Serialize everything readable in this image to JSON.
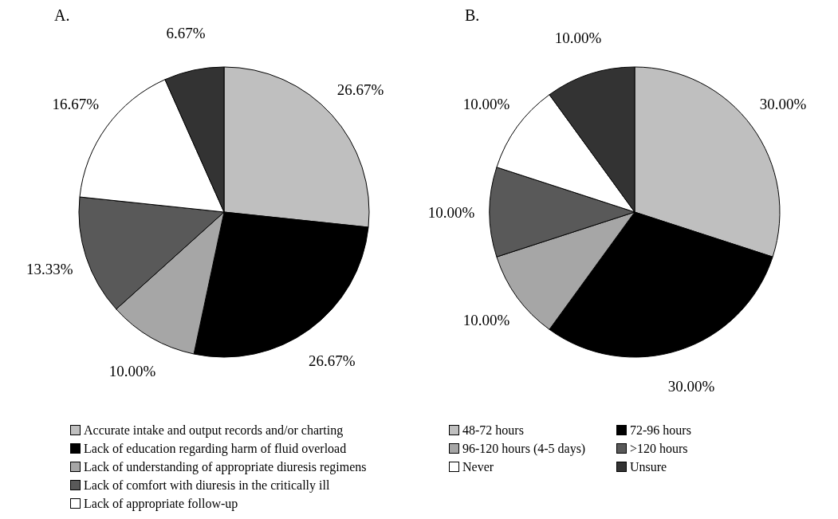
{
  "chart_data": [
    {
      "type": "pie",
      "title": "A.",
      "categories": [
        "Accurate intake and output records and/or charting",
        "Lack of education regarding harm of fluid overload",
        "Lack of understanding of appropriate diuresis regimens",
        "Lack of comfort with diuresis in the critically ill",
        "Lack of appropriate follow-up",
        null
      ],
      "values": [
        26.67,
        26.67,
        10.0,
        13.33,
        16.67,
        6.67
      ],
      "value_labels": [
        "26.67%",
        "26.67%",
        "10.00%",
        "13.33%",
        "16.67%",
        "6.67%"
      ],
      "colors": [
        "#bfbfbf",
        "#000000",
        "#a6a6a6",
        "#595959",
        "#ffffff",
        "#333333"
      ],
      "legend": "bottom"
    },
    {
      "type": "pie",
      "title": "B.",
      "categories": [
        "48-72 hours",
        "72-96 hours",
        "96-120 hours (4-5 days)",
        ">120 hours",
        "Never",
        "Unsure"
      ],
      "values": [
        30.0,
        30.0,
        10.0,
        10.0,
        10.0,
        10.0
      ],
      "value_labels": [
        "30.00%",
        "30.00%",
        "10.00%",
        "10.00%",
        "10.00%",
        "10.00%"
      ],
      "colors": [
        "#bfbfbf",
        "#000000",
        "#a6a6a6",
        "#595959",
        "#ffffff",
        "#333333"
      ],
      "legend": "bottom"
    }
  ]
}
